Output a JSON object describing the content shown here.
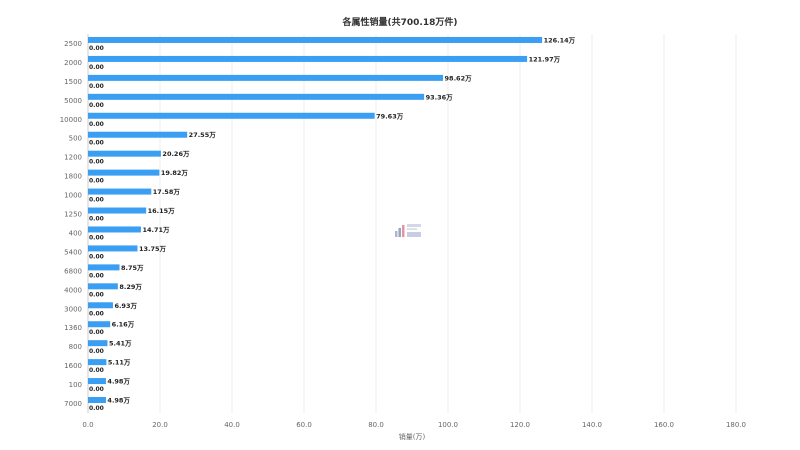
{
  "chart_data": {
    "type": "bar",
    "orientation": "horizontal",
    "title": "各属性销量(共700.18万件)",
    "xlabel": "销量(万)",
    "ylabel": "",
    "xlim": [
      0,
      180
    ],
    "xticks": [
      "0.0",
      "20.0",
      "40.0",
      "60.0",
      "80.0",
      "100.0",
      "120.0",
      "140.0",
      "160.0",
      "180.0"
    ],
    "grid": true,
    "categories": [
      "2500",
      "2000",
      "1500",
      "5000",
      "10000",
      "500",
      "1200",
      "1800",
      "1000",
      "1250",
      "400",
      "5400",
      "6800",
      "4000",
      "3000",
      "1360",
      "800",
      "1600",
      "100",
      "7000"
    ],
    "series": [
      {
        "values": [
          126.14,
          121.97,
          98.62,
          93.36,
          79.63,
          27.55,
          20.26,
          19.82,
          17.58,
          16.15,
          14.71,
          13.75,
          8.75,
          8.29,
          6.93,
          6.16,
          5.41,
          5.11,
          4.98,
          4.98
        ],
        "labels": [
          "126.14万",
          "121.97万",
          "98.62万",
          "93.36万",
          "79.63万",
          "27.55万",
          "20.26万",
          "19.82万",
          "17.58万",
          "16.15万",
          "14.71万",
          "13.75万",
          "8.75万",
          "8.29万",
          "6.93万",
          "6.16万",
          "5.41万",
          "5.11万",
          "4.98万",
          "4.98万"
        ],
        "color": "#3a9ef2"
      },
      {
        "values": [
          0,
          0,
          0,
          0,
          0,
          0,
          0,
          0,
          0,
          0,
          0,
          0,
          0,
          0,
          0,
          0,
          0,
          0,
          0,
          0
        ],
        "labels": [
          "0.00",
          "0.00",
          "0.00",
          "0.00",
          "0.00",
          "0.00",
          "0.00",
          "0.00",
          "0.00",
          "0.00",
          "0.00",
          "0.00",
          "0.00",
          "0.00",
          "0.00",
          "0.00",
          "0.00",
          "0.00",
          "0.00",
          "0.00"
        ],
        "color": "#3a9ef2"
      }
    ]
  },
  "watermark_icon": "bar-logo-icon"
}
